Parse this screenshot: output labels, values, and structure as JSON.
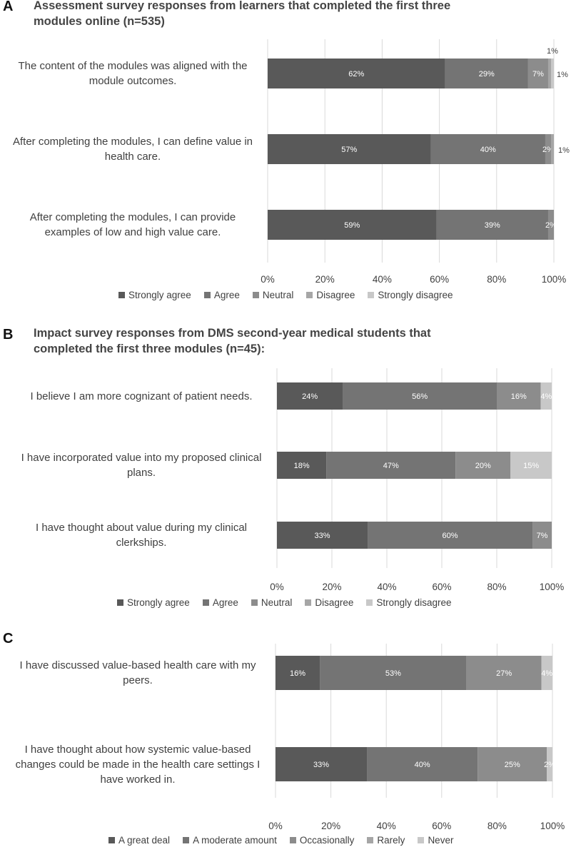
{
  "colors": {
    "strongly_agree": "#595959",
    "agree": "#747474",
    "neutral": "#8c8c8c",
    "disagree": "#a6a6a6",
    "strongly_disagree": "#c8c8c8",
    "grid": "#d9d9d9",
    "label_in_bar": "#ffffff",
    "label_out": "#404040"
  },
  "panels": [
    {
      "letter": "A",
      "title_line1": "Assessment survey responses from learners that completed the first three",
      "title_line2": "modules online (n=535)"
    },
    {
      "letter": "B",
      "title_line1": "Impact survey responses from DMS second-year medical students that",
      "title_line2": "completed the first three modules (n=45):"
    },
    {
      "letter": "C",
      "title_line1": "",
      "title_line2": ""
    }
  ],
  "chart_data": [
    {
      "type": "bar",
      "orientation": "horizontal",
      "stacked": true,
      "title": "Assessment survey responses from learners that completed the first three modules online (n=535)",
      "categories": [
        "The content of the modules was aligned with the module outcomes.",
        "After completing the modules, I can define value in health care.",
        "After completing the modules, I can provide examples of low and high value care."
      ],
      "category_lines": [
        [
          "The content of the modules was aligned with the",
          "module outcomes."
        ],
        [
          "After completing the modules, I can define value in",
          "health care."
        ],
        [
          "After completing the modules, I can provide",
          "examples of low and high value care."
        ]
      ],
      "series": [
        {
          "name": "Strongly agree",
          "values": [
            62,
            57,
            59
          ]
        },
        {
          "name": "Agree",
          "values": [
            29,
            40,
            39
          ]
        },
        {
          "name": "Neutral",
          "values": [
            7,
            2,
            2
          ]
        },
        {
          "name": "Disagree",
          "values": [
            1,
            1,
            0
          ]
        },
        {
          "name": "Strongly disagree",
          "values": [
            1,
            0,
            0
          ]
        }
      ],
      "data_labels": [
        [
          "62%",
          "29%",
          "7%",
          "1%",
          "1%"
        ],
        [
          "57%",
          "40%",
          "2%",
          "1%",
          ""
        ],
        [
          "59%",
          "39%",
          "2%",
          "",
          ""
        ]
      ],
      "tick_labels": [
        "0%",
        "20%",
        "40%",
        "60%",
        "80%",
        "100%"
      ],
      "xlim": [
        0,
        100
      ],
      "legend_position": "bottom"
    },
    {
      "type": "bar",
      "orientation": "horizontal",
      "stacked": true,
      "title": "Impact survey responses from DMS second-year medical students that completed the first three modules (n=45):",
      "categories": [
        "I believe I am more cognizant of patient needs.",
        "I have incorporated value into my proposed clinical plans.",
        "I have thought about value during my clinical clerkships."
      ],
      "category_lines": [
        [
          "I believe I am more cognizant of patient needs."
        ],
        [
          "I have incorporated value into my proposed clinical",
          "plans."
        ],
        [
          "I have thought about value during my clinical",
          "clerkships."
        ]
      ],
      "series": [
        {
          "name": "Strongly agree",
          "values": [
            24,
            18,
            33
          ]
        },
        {
          "name": "Agree",
          "values": [
            56,
            47,
            60
          ]
        },
        {
          "name": "Neutral",
          "values": [
            16,
            20,
            7
          ]
        },
        {
          "name": "Disagree",
          "values": [
            0,
            0,
            0
          ]
        },
        {
          "name": "Strongly disagree",
          "values": [
            4,
            15,
            0
          ]
        }
      ],
      "data_labels": [
        [
          "24%",
          "56%",
          "16%",
          "",
          "4%"
        ],
        [
          "18%",
          "47%",
          "20%",
          "",
          "15%"
        ],
        [
          "33%",
          "60%",
          "7%",
          "",
          ""
        ]
      ],
      "tick_labels": [
        "0%",
        "20%",
        "40%",
        "60%",
        "80%",
        "100%"
      ],
      "xlim": [
        0,
        100
      ],
      "legend_position": "bottom"
    },
    {
      "type": "bar",
      "orientation": "horizontal",
      "stacked": true,
      "title": "",
      "categories": [
        "I have discussed value-based health care with my peers.",
        "I have thought about how systemic value-based changes could be made in the health care settings I have worked in."
      ],
      "category_lines": [
        [
          "I have discussed value-based health care with my",
          "peers."
        ],
        [
          "I have thought about how systemic value-based",
          "changes could be made in the health care settings I",
          "have worked in."
        ]
      ],
      "series": [
        {
          "name": "A great deal",
          "values": [
            16,
            33
          ]
        },
        {
          "name": "A moderate amount",
          "values": [
            53,
            40
          ]
        },
        {
          "name": "Occasionally",
          "values": [
            27,
            25
          ]
        },
        {
          "name": "Rarely",
          "values": [
            0,
            0
          ]
        },
        {
          "name": "Never",
          "values": [
            4,
            2
          ]
        }
      ],
      "data_labels": [
        [
          "16%",
          "53%",
          "27%",
          "",
          "4%"
        ],
        [
          "33%",
          "40%",
          "25%",
          "",
          "2%"
        ]
      ],
      "tick_labels": [
        "0%",
        "20%",
        "40%",
        "60%",
        "80%",
        "100%"
      ],
      "xlim": [
        0,
        100
      ],
      "legend_position": "bottom"
    }
  ]
}
